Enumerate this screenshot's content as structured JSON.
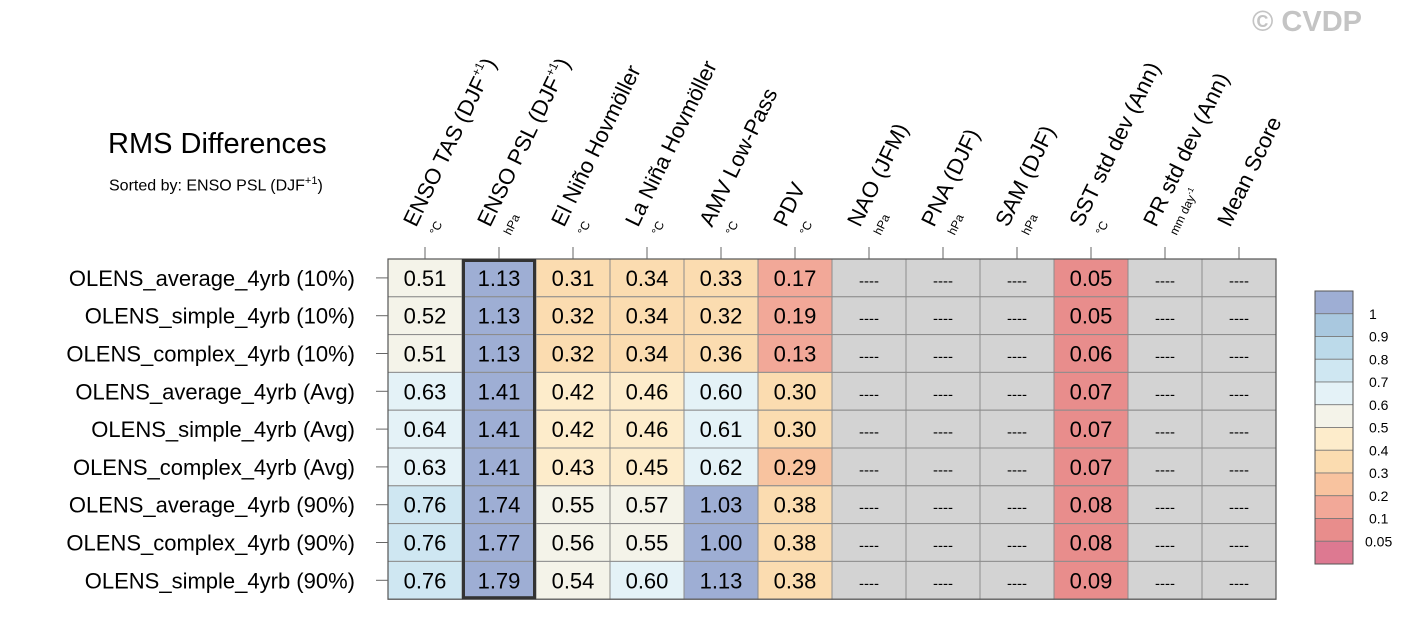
{
  "watermark": "© CVDP",
  "chart_data": {
    "type": "heatmap",
    "title": "RMS Differences",
    "subtitle": "Sorted by: ENSO PSL (DJF",
    "subtitle_sup": "+1",
    "subtitle_end": ")",
    "highlight_column": 1,
    "columns": [
      {
        "label": "ENSO TAS (DJF",
        "sup": "+1",
        "label_end": ")",
        "unit": "°C"
      },
      {
        "label": "ENSO PSL (DJF",
        "sup": "+1",
        "label_end": ")",
        "unit": "hPa"
      },
      {
        "label": "El Niño Hovmöller",
        "unit": "°C"
      },
      {
        "label": "La Niña Hovmöller",
        "unit": "°C"
      },
      {
        "label": "AMV Low-Pass",
        "unit": "°C"
      },
      {
        "label": "PDV",
        "unit": "°C"
      },
      {
        "label": "NAO (JFM)",
        "unit": "hPa"
      },
      {
        "label": "PNA (DJF)",
        "unit": "hPa"
      },
      {
        "label": "SAM (DJF)",
        "unit": "hPa"
      },
      {
        "label": "SST std dev (Ann)",
        "unit": "°C"
      },
      {
        "label": "PR std dev (Ann)",
        "unit": "mm day",
        "unit_sup": "-1"
      },
      {
        "label": "Mean Score",
        "unit": ""
      }
    ],
    "rows": [
      "OLENS_average_4yrb (10%)",
      "OLENS_simple_4yrb (10%)",
      "OLENS_complex_4yrb (10%)",
      "OLENS_average_4yrb (Avg)",
      "OLENS_simple_4yrb (Avg)",
      "OLENS_complex_4yrb (Avg)",
      "OLENS_average_4yrb (90%)",
      "OLENS_complex_4yrb (90%)",
      "OLENS_simple_4yrb (90%)"
    ],
    "values": [
      [
        "0.51",
        "1.13",
        "0.31",
        "0.34",
        "0.33",
        "0.17",
        "----",
        "----",
        "----",
        "0.05",
        "----",
        "----"
      ],
      [
        "0.52",
        "1.13",
        "0.32",
        "0.34",
        "0.32",
        "0.19",
        "----",
        "----",
        "----",
        "0.05",
        "----",
        "----"
      ],
      [
        "0.51",
        "1.13",
        "0.32",
        "0.34",
        "0.36",
        "0.13",
        "----",
        "----",
        "----",
        "0.06",
        "----",
        "----"
      ],
      [
        "0.63",
        "1.41",
        "0.42",
        "0.46",
        "0.60",
        "0.30",
        "----",
        "----",
        "----",
        "0.07",
        "----",
        "----"
      ],
      [
        "0.64",
        "1.41",
        "0.42",
        "0.46",
        "0.61",
        "0.30",
        "----",
        "----",
        "----",
        "0.07",
        "----",
        "----"
      ],
      [
        "0.63",
        "1.41",
        "0.43",
        "0.45",
        "0.62",
        "0.29",
        "----",
        "----",
        "----",
        "0.07",
        "----",
        "----"
      ],
      [
        "0.76",
        "1.74",
        "0.55",
        "0.57",
        "1.03",
        "0.38",
        "----",
        "----",
        "----",
        "0.08",
        "----",
        "----"
      ],
      [
        "0.76",
        "1.77",
        "0.56",
        "0.55",
        "1.00",
        "0.38",
        "----",
        "----",
        "----",
        "0.08",
        "----",
        "----"
      ],
      [
        "0.76",
        "1.79",
        "0.54",
        "0.60",
        "1.13",
        "0.38",
        "----",
        "----",
        "----",
        "0.09",
        "----",
        "----"
      ]
    ],
    "missing_color": "#d3d3d3",
    "colorbar": {
      "labels": [
        "1",
        "0.9",
        "0.8",
        "0.7",
        "0.6",
        "0.5",
        "0.4",
        "0.3",
        "0.2",
        "0.1",
        "0.05"
      ],
      "colors": [
        "#9eaed4",
        "#a9c8df",
        "#bcdaea",
        "#cfe7f2",
        "#e4f2f7",
        "#f4f3e9",
        "#fdeccb",
        "#fbdcb0",
        "#f8c39f",
        "#f2a898",
        "#e88d8c",
        "#dd7991"
      ]
    }
  }
}
